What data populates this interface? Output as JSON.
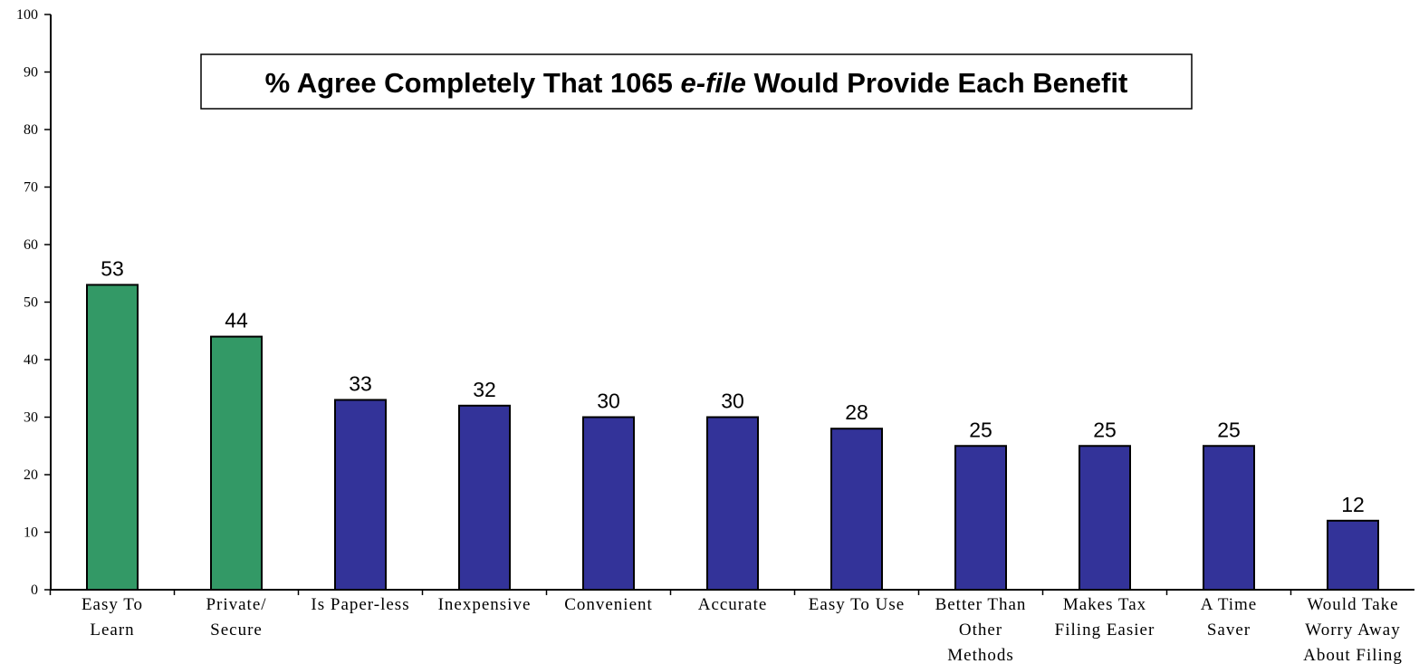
{
  "chart_data": {
    "type": "bar",
    "title": {
      "prefix": "% Agree Completely That 1065 ",
      "emphasis": "e-file",
      "suffix": " Would Provide Each Benefit"
    },
    "xlabel": "",
    "ylabel": "",
    "ylim": [
      0,
      100
    ],
    "yticks": [
      0,
      10,
      20,
      30,
      40,
      50,
      60,
      70,
      80,
      90,
      100
    ],
    "grid": false,
    "categories": [
      [
        "Easy To",
        "Learn"
      ],
      [
        "Private/",
        "Secure"
      ],
      [
        "Is Paper-less"
      ],
      [
        "Inexpensive"
      ],
      [
        "Convenient"
      ],
      [
        "Accurate"
      ],
      [
        "Easy To Use"
      ],
      [
        "Better Than",
        "Other",
        "Methods"
      ],
      [
        "Makes Tax",
        "Filing Easier"
      ],
      [
        "A Time",
        "Saver"
      ],
      [
        "Would Take",
        "Worry Away",
        "About Filing"
      ]
    ],
    "values": [
      53,
      44,
      33,
      32,
      30,
      30,
      28,
      25,
      25,
      25,
      12
    ],
    "data_labels": [
      "53",
      "44",
      "33",
      "32",
      "30",
      "30",
      "28",
      "25",
      "25",
      "25",
      "12"
    ],
    "bar_colors": [
      "#339966",
      "#339966",
      "#333399",
      "#333399",
      "#333399",
      "#333399",
      "#333399",
      "#333399",
      "#333399",
      "#333399",
      "#333399"
    ]
  }
}
